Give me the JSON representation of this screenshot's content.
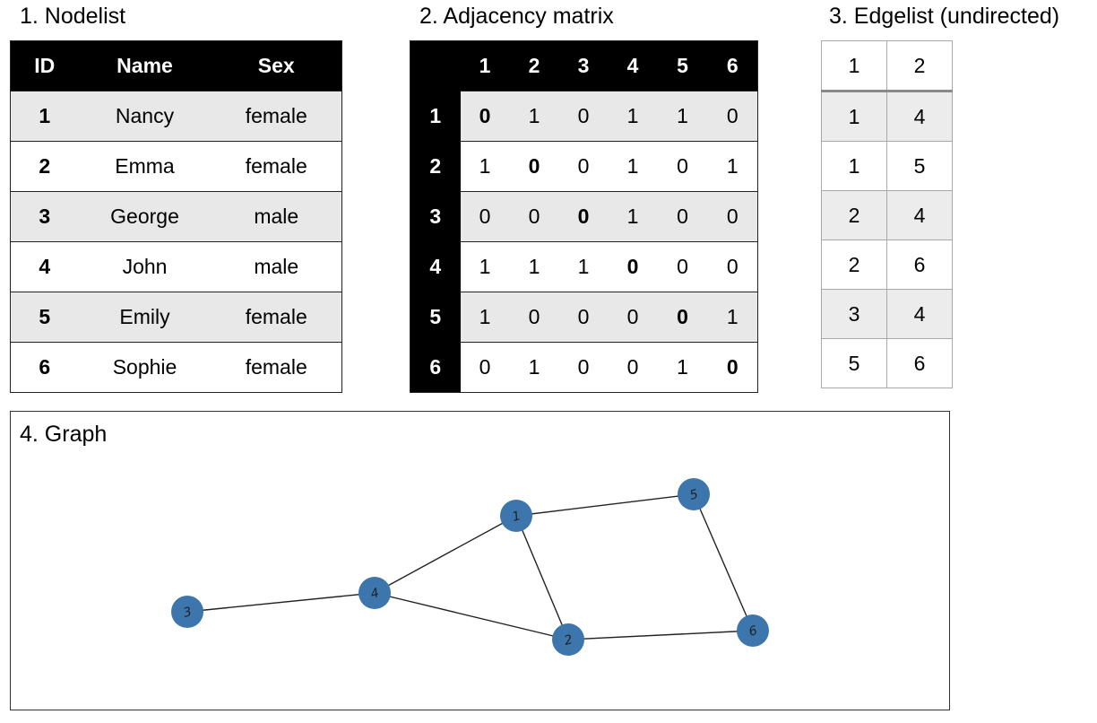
{
  "nodelist": {
    "title": "1. Nodelist",
    "headers": [
      "ID",
      "Name",
      "Sex"
    ],
    "rows": [
      {
        "id": "1",
        "name": "Nancy",
        "sex": "female"
      },
      {
        "id": "2",
        "name": "Emma",
        "sex": "female"
      },
      {
        "id": "3",
        "name": "George",
        "sex": "male"
      },
      {
        "id": "4",
        "name": "John",
        "sex": "male"
      },
      {
        "id": "5",
        "name": "Emily",
        "sex": "female"
      },
      {
        "id": "6",
        "name": "Sophie",
        "sex": "female"
      }
    ]
  },
  "adjacency": {
    "title": "2. Adjacency matrix",
    "col_headers": [
      "1",
      "2",
      "3",
      "4",
      "5",
      "6"
    ],
    "row_headers": [
      "1",
      "2",
      "3",
      "4",
      "5",
      "6"
    ],
    "matrix": [
      [
        "0",
        "1",
        "0",
        "1",
        "1",
        "0"
      ],
      [
        "1",
        "0",
        "0",
        "1",
        "0",
        "1"
      ],
      [
        "0",
        "0",
        "0",
        "1",
        "0",
        "0"
      ],
      [
        "1",
        "1",
        "1",
        "0",
        "0",
        "0"
      ],
      [
        "1",
        "0",
        "0",
        "0",
        "0",
        "1"
      ],
      [
        "0",
        "1",
        "0",
        "0",
        "1",
        "0"
      ]
    ]
  },
  "edgelist": {
    "title": "3. Edgelist (undirected)",
    "rows": [
      [
        "1",
        "2"
      ],
      [
        "1",
        "4"
      ],
      [
        "1",
        "5"
      ],
      [
        "2",
        "4"
      ],
      [
        "2",
        "6"
      ],
      [
        "3",
        "4"
      ],
      [
        "5",
        "6"
      ]
    ]
  },
  "graph": {
    "title": "4. Graph",
    "node_color": "#3d75ad",
    "nodes": [
      "1",
      "2",
      "3",
      "4",
      "5",
      "6"
    ],
    "edges": [
      [
        "1",
        "5"
      ],
      [
        "1",
        "4"
      ],
      [
        "1",
        "2"
      ],
      [
        "5",
        "6"
      ],
      [
        "3",
        "4"
      ],
      [
        "4",
        "2"
      ],
      [
        "2",
        "6"
      ]
    ]
  }
}
